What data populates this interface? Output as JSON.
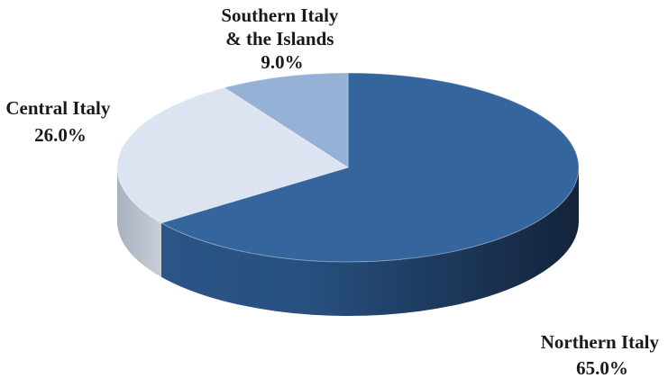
{
  "chart_data": {
    "type": "pie",
    "style": "3d",
    "slices": [
      {
        "name": "Northern Italy",
        "label_lines": [
          "Northern Italy"
        ],
        "value": 65.0,
        "value_label": "65.0%",
        "color": "#34659d"
      },
      {
        "name": "Central Italy",
        "label_lines": [
          "Central Italy"
        ],
        "value": 26.0,
        "value_label": "26.0%",
        "color": "#dbe4f0"
      },
      {
        "name": "Southern Italy & the Islands",
        "label_lines": [
          "Southern Italy",
          "& the Islands"
        ],
        "value": 9.0,
        "value_label": "9.0%",
        "color": "#95b2d6"
      }
    ],
    "legend": "none"
  }
}
